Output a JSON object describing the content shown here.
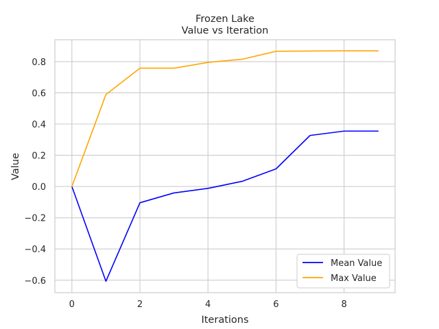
{
  "chart_data": {
    "type": "line",
    "title": "Frozen Lake",
    "subtitle": "Value vs Iteration",
    "xlabel": "Iterations",
    "ylabel": "Value",
    "xlim": [
      -0.5,
      9.5
    ],
    "ylim": [
      -0.68,
      0.94
    ],
    "x": [
      0,
      1,
      2,
      3,
      4,
      5,
      6,
      7,
      8,
      9
    ],
    "xticks": [
      0,
      2,
      4,
      6,
      8
    ],
    "yticks": [
      -0.6,
      -0.4,
      -0.2,
      0.0,
      0.2,
      0.4,
      0.6,
      0.8
    ],
    "xtick_labels": [
      "0",
      "2",
      "4",
      "6",
      "8"
    ],
    "ytick_labels": [
      "−0.6",
      "−0.4",
      "−0.2",
      "0.0",
      "0.2",
      "0.4",
      "0.6",
      "0.8"
    ],
    "grid": true,
    "legend_position": "lower-right",
    "series": [
      {
        "name": "Mean Value",
        "color": "#0000ff",
        "values": [
          0.0,
          -0.607,
          -0.104,
          -0.041,
          -0.012,
          0.033,
          0.113,
          0.327,
          0.355,
          0.355
        ]
      },
      {
        "name": "Max Value",
        "color": "#ffa500",
        "values": [
          0.0,
          0.589,
          0.758,
          0.758,
          0.795,
          0.815,
          0.866,
          0.868,
          0.869,
          0.869
        ]
      }
    ]
  }
}
